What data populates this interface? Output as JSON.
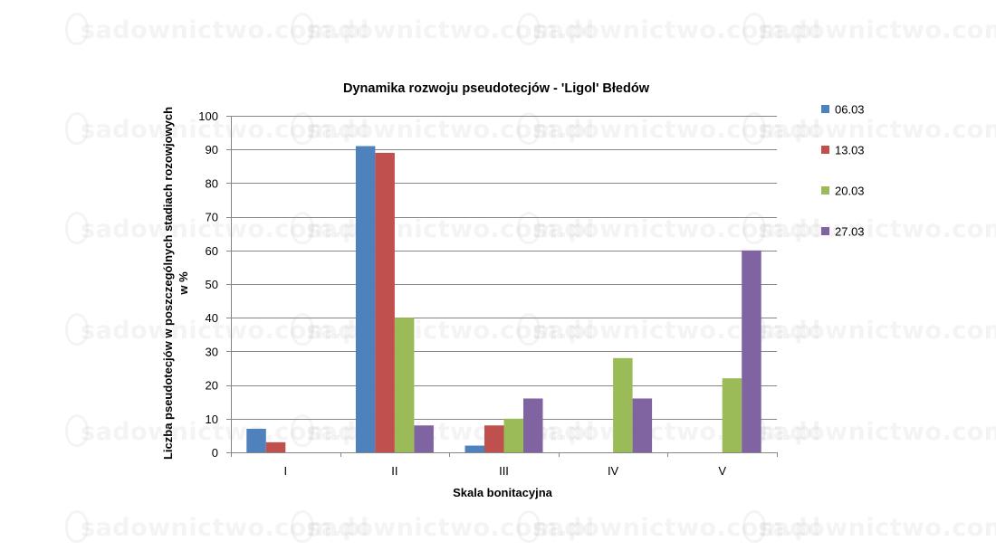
{
  "watermark": {
    "text": "sadownictwo.com.pl"
  },
  "colors": {
    "series": [
      "#4F81BD",
      "#C0504D",
      "#9BBB59",
      "#8064A2"
    ],
    "gridline": "#868686",
    "axis": "#868686"
  },
  "chart_data": {
    "type": "bar",
    "title": "Dynamika rozwoju pseudotecjów  - 'Ligol' Błedów",
    "xlabel": "Skala bonitacyjna",
    "ylabel_lines": [
      "Liczba pseudotecjów w poszczególnych stadiach rozowjowych",
      "w %"
    ],
    "categories": [
      "I",
      "II",
      "III",
      "IV",
      "V"
    ],
    "ylim": [
      0,
      100
    ],
    "yticks": [
      0,
      10,
      20,
      30,
      40,
      50,
      60,
      70,
      80,
      90,
      100
    ],
    "grid": true,
    "legend_position": "right",
    "series": [
      {
        "name": "06.03",
        "values": [
          7,
          91,
          2,
          0,
          0
        ]
      },
      {
        "name": "13.03",
        "values": [
          3,
          89,
          8,
          0,
          0
        ]
      },
      {
        "name": "20.03",
        "values": [
          0,
          40,
          10,
          28,
          22
        ]
      },
      {
        "name": "27.03",
        "values": [
          0,
          8,
          16,
          16,
          60
        ]
      }
    ]
  }
}
